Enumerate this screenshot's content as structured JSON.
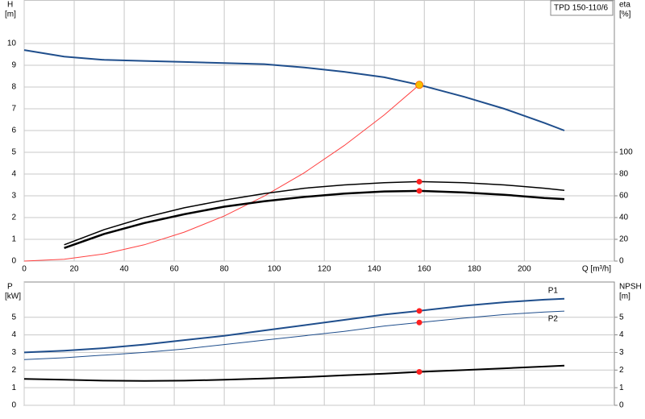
{
  "chart_data": [
    {
      "type": "line",
      "title": "TPD 150-110/6",
      "ylabel": "H",
      "yunit": "[m]",
      "y2label": "eta",
      "y2unit": "[%]",
      "xlabel": "Q [m³/h]",
      "xlim": [
        0,
        236
      ],
      "xticks": [
        0,
        20,
        40,
        60,
        80,
        100,
        120,
        140,
        160,
        180,
        200
      ],
      "ylim": [
        0,
        12
      ],
      "yticks": [
        0,
        1,
        2,
        3,
        4,
        5,
        6,
        7,
        8,
        9,
        10
      ],
      "y2lim": [
        0,
        240
      ],
      "y2ticks": [
        0,
        20,
        40,
        60,
        80,
        100
      ],
      "grid": true,
      "xtick_labels": true,
      "series": [
        {
          "color": "#1f4e8c",
          "width": 2,
          "axis": "y",
          "x": [
            0,
            16,
            32,
            48,
            64,
            80,
            96,
            112,
            128,
            144,
            158,
            176,
            192,
            208,
            216
          ],
          "values": [
            9.7,
            9.4,
            9.25,
            9.2,
            9.15,
            9.1,
            9.05,
            8.9,
            8.7,
            8.45,
            8.1,
            7.55,
            7.0,
            6.35,
            6.0
          ]
        },
        {
          "color": "#ff4040",
          "width": 1,
          "axis": "y",
          "x": [
            0,
            16,
            32,
            48,
            64,
            80,
            96,
            112,
            128,
            144,
            158
          ],
          "values": [
            0,
            0.08,
            0.33,
            0.75,
            1.33,
            2.07,
            2.99,
            4.06,
            5.31,
            6.72,
            8.1
          ]
        },
        {
          "color": "#000000",
          "width": 1.5,
          "axis": "y2",
          "x": [
            16,
            32,
            48,
            64,
            80,
            96,
            112,
            128,
            144,
            158,
            176,
            192,
            208,
            216
          ],
          "values": [
            15,
            29,
            40,
            49,
            56,
            62,
            67,
            70,
            72,
            73,
            72,
            70,
            67,
            65
          ]
        },
        {
          "color": "#000000",
          "width": 2.5,
          "axis": "y2",
          "x": [
            16,
            32,
            48,
            64,
            80,
            96,
            112,
            128,
            144,
            158,
            176,
            192,
            208,
            216
          ],
          "values": [
            12,
            25,
            35,
            43,
            50,
            55,
            59,
            62,
            64,
            64.5,
            63,
            61,
            58,
            57
          ]
        }
      ],
      "points": [
        {
          "x": 158,
          "y": 8.1,
          "axis": "y",
          "color": "#f5c000"
        },
        {
          "x": 158,
          "y": 73,
          "axis": "y2",
          "color": "#ff2020"
        },
        {
          "x": 158,
          "y": 64.5,
          "axis": "y2",
          "color": "#ff2020"
        }
      ]
    },
    {
      "type": "line",
      "ylabel": "P",
      "yunit": "[kW]",
      "y2label": "NPSH",
      "y2unit": "[m]",
      "xlim": [
        0,
        236
      ],
      "xticks": [
        0,
        20,
        40,
        60,
        80,
        100,
        120,
        140,
        160,
        180,
        200
      ],
      "ylim": [
        0,
        7
      ],
      "yticks": [
        0,
        1,
        2,
        3,
        4,
        5
      ],
      "y2lim": [
        0,
        7
      ],
      "y2ticks": [
        0,
        1,
        2,
        3,
        4,
        5
      ],
      "grid": true,
      "xtick_labels": false,
      "series": [
        {
          "name": "P1",
          "color": "#1f4e8c",
          "width": 2,
          "axis": "y",
          "x": [
            0,
            16,
            32,
            48,
            64,
            80,
            96,
            112,
            128,
            144,
            158,
            176,
            192,
            208,
            216
          ],
          "values": [
            3.0,
            3.1,
            3.25,
            3.45,
            3.7,
            3.95,
            4.25,
            4.55,
            4.85,
            5.15,
            5.36,
            5.65,
            5.85,
            6.0,
            6.05
          ]
        },
        {
          "name": "P2",
          "color": "#1f4e8c",
          "width": 1,
          "axis": "y",
          "x": [
            0,
            16,
            32,
            48,
            64,
            80,
            96,
            112,
            128,
            144,
            158,
            176,
            192,
            208,
            216
          ],
          "values": [
            2.6,
            2.7,
            2.85,
            3.0,
            3.2,
            3.45,
            3.7,
            3.95,
            4.2,
            4.5,
            4.7,
            4.95,
            5.15,
            5.3,
            5.35
          ]
        },
        {
          "color": "#000000",
          "width": 2,
          "axis": "y2",
          "x": [
            0,
            16,
            32,
            48,
            64,
            80,
            96,
            112,
            128,
            144,
            158,
            176,
            192,
            208,
            216
          ],
          "values": [
            1.5,
            1.45,
            1.4,
            1.38,
            1.4,
            1.45,
            1.52,
            1.6,
            1.7,
            1.8,
            1.9,
            2.0,
            2.1,
            2.2,
            2.25
          ]
        }
      ],
      "points": [
        {
          "x": 158,
          "y": 5.36,
          "axis": "y",
          "color": "#ff2020"
        },
        {
          "x": 158,
          "y": 4.7,
          "axis": "y",
          "color": "#ff2020"
        },
        {
          "x": 158,
          "y": 1.9,
          "axis": "y2",
          "color": "#ff2020"
        }
      ]
    }
  ]
}
